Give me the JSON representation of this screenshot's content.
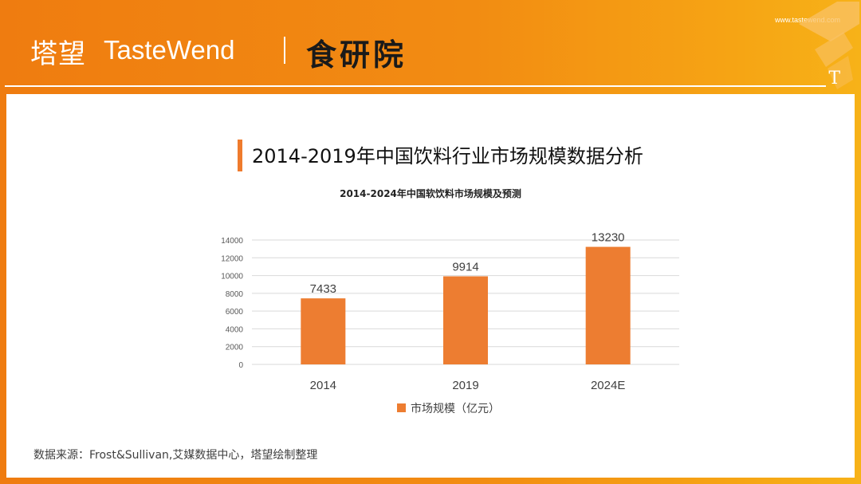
{
  "brand": {
    "name_cn": "塔望",
    "name_en": "TasteWend",
    "lab_name": "食研院",
    "website": "www.tastewend.com",
    "corner_letter": "T"
  },
  "colors": {
    "brand_orange": "#f28c12",
    "bar": "#ed7d31",
    "title_accent": "#ef7b2d"
  },
  "slide": {
    "main_title": "2014-2019年中国饮料行业市场规模数据分析",
    "source_note": "数据来源：Frost&Sullivan,艾媒数据中心，塔望绘制整理"
  },
  "chart_data": {
    "type": "bar",
    "title": "2014-2024年中国软饮料市场规模及预测",
    "categories": [
      "2014",
      "2019",
      "2024E"
    ],
    "series": [
      {
        "name": "市场规模（亿元）",
        "values": [
          7433,
          9914,
          13230
        ]
      }
    ],
    "ylim": [
      0,
      14000
    ],
    "yticks": [
      0,
      2000,
      4000,
      6000,
      8000,
      10000,
      12000,
      14000
    ],
    "grid": true,
    "legend_position": "bottom",
    "data_labels": true
  }
}
